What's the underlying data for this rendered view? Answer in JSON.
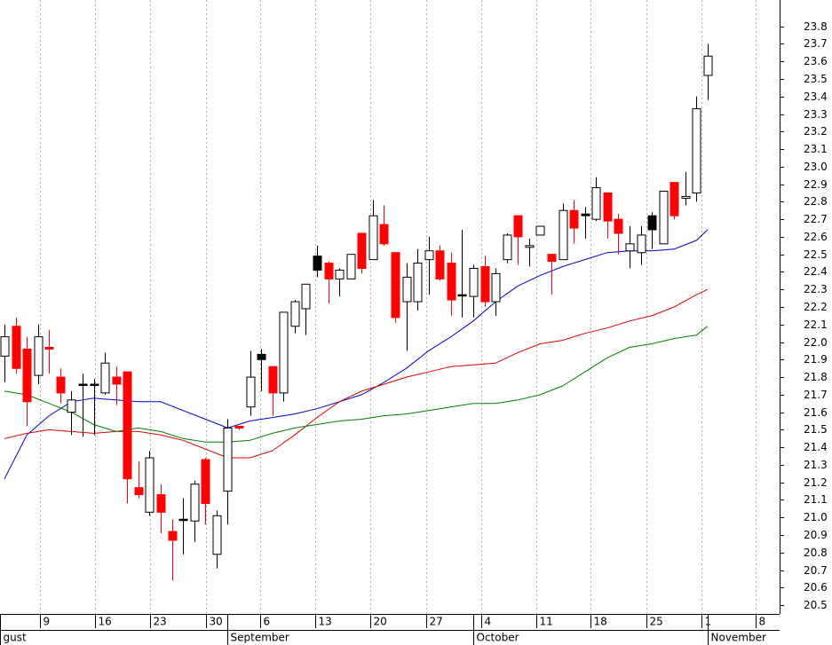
{
  "chart_data": {
    "type": "candlestick",
    "xlim": [
      -0.4,
      69.45
    ],
    "ylim": [
      20.45,
      23.95
    ],
    "yticks": [
      20.5,
      20.6,
      20.7,
      20.8,
      20.9,
      {
        "value": 21,
        "label": "21.0"
      },
      21.1,
      21.2,
      21.3,
      21.4,
      21.5,
      21.6,
      21.7,
      21.8,
      21.9,
      {
        "value": 22,
        "label": "22.0"
      },
      22.1,
      22.2,
      22.3,
      22.4,
      22.5,
      22.6,
      22.7,
      22.8,
      22.9,
      {
        "value": 23,
        "label": "23.0"
      },
      23.1,
      23.2,
      23.3,
      23.4,
      23.5,
      23.6,
      23.7,
      23.8
    ],
    "xticks": [
      {
        "value": 3.18,
        "label": "9"
      },
      {
        "value": 8.11,
        "label": "16"
      },
      {
        "value": 13.05,
        "label": "23"
      },
      {
        "value": 18.06,
        "label": "30"
      },
      {
        "value": 22.91,
        "label": "6"
      },
      {
        "value": 27.84,
        "label": "13"
      },
      {
        "value": 32.78,
        "label": "20"
      },
      {
        "value": 37.79,
        "label": "27"
      },
      {
        "value": 42.72,
        "label": "4"
      },
      {
        "value": 47.65,
        "label": "11"
      },
      {
        "value": 52.51,
        "label": "18"
      },
      {
        "value": 57.52,
        "label": "25"
      },
      {
        "value": 62.45,
        "label": "1"
      },
      {
        "value": 67.3,
        "label": "8"
      }
    ],
    "months": [
      {
        "value": -0.4,
        "label": "gust"
      },
      {
        "value": 19.97,
        "label": "September"
      },
      {
        "value": 42.0,
        "label": "October"
      },
      {
        "value": 63.0,
        "label": "November"
      }
    ],
    "grid": true,
    "candles": {
      "x": [
        0,
        1,
        2,
        3,
        4,
        5,
        6,
        7,
        8,
        9,
        10,
        11,
        12,
        13,
        14,
        15,
        16,
        17,
        18,
        19,
        20,
        21,
        22,
        23,
        24,
        25,
        26,
        27,
        28,
        29,
        30,
        31,
        32,
        33,
        34,
        35,
        36,
        37,
        38,
        39,
        40,
        41,
        42,
        43,
        44,
        45,
        46,
        47,
        48,
        49,
        50,
        51,
        52,
        53,
        54,
        55,
        56,
        57,
        58,
        59,
        60,
        61,
        62,
        63
      ],
      "open": [
        21.92,
        22.09,
        21.96,
        21.81,
        21.97,
        21.8,
        21.6,
        21.76,
        21.76,
        21.71,
        21.8,
        21.83,
        21.17,
        21.03,
        21.13,
        20.92,
        20.99,
        20.98,
        21.33,
        20.79,
        21.15,
        21.52,
        21.63,
        21.93,
        21.86,
        21.71,
        22.09,
        22.19,
        22.41,
        22.45,
        22.36,
        22.36,
        22.62,
        22.47,
        22.67,
        22.51,
        22.23,
        22.23,
        22.47,
        22.52,
        22.45,
        22.27,
        22.26,
        22.43,
        22.23,
        22.47,
        22.72,
        22.54,
        22.61,
        22.5,
        22.47,
        22.75,
        22.73,
        22.7,
        22.85,
        22.7,
        22.52,
        22.51,
        22.64,
        22.56,
        22.91,
        22.82,
        22.85,
        23.52
      ],
      "high": [
        22.1,
        22.14,
        22.03,
        22.1,
        22.07,
        21.85,
        21.72,
        21.82,
        21.79,
        21.94,
        21.86,
        21.83,
        21.32,
        21.38,
        21.19,
        20.99,
        21.11,
        21.21,
        21.34,
        21.04,
        21.56,
        21.52,
        21.95,
        21.96,
        21.86,
        22.17,
        22.24,
        22.33,
        22.55,
        22.46,
        22.42,
        22.5,
        22.62,
        22.81,
        22.78,
        22.51,
        22.45,
        22.53,
        22.6,
        22.55,
        22.51,
        22.64,
        22.44,
        22.49,
        22.42,
        22.62,
        22.72,
        22.59,
        22.66,
        22.5,
        22.79,
        22.81,
        22.77,
        22.94,
        22.85,
        22.73,
        22.66,
        22.66,
        22.74,
        22.86,
        22.91,
        22.97,
        23.4,
        23.7
      ],
      "low": [
        21.77,
        21.82,
        21.52,
        21.76,
        21.82,
        21.65,
        21.47,
        21.46,
        21.47,
        21.7,
        21.64,
        21.08,
        21.11,
        21.01,
        20.91,
        20.64,
        20.79,
        20.86,
        20.96,
        20.71,
        20.96,
        21.5,
        21.58,
        21.72,
        21.58,
        21.66,
        22.05,
        22.04,
        22.37,
        22.22,
        22.26,
        22.36,
        22.39,
        22.47,
        22.55,
        22.11,
        21.95,
        22.18,
        22.27,
        22.35,
        22.15,
        22.14,
        22.14,
        22.2,
        22.15,
        22.45,
        22.44,
        22.43,
        22.61,
        22.27,
        22.47,
        22.56,
        22.59,
        22.69,
        22.59,
        22.5,
        22.42,
        22.44,
        22.53,
        22.56,
        22.7,
        22.78,
        22.8,
        23.38
      ],
      "close": [
        22.03,
        21.85,
        21.66,
        22.03,
        21.96,
        21.71,
        21.67,
        21.76,
        21.76,
        21.88,
        21.76,
        21.22,
        21.13,
        21.34,
        21.03,
        20.87,
        20.99,
        21.19,
        21.08,
        21.01,
        21.51,
        21.51,
        21.8,
        21.9,
        21.71,
        22.17,
        22.23,
        22.33,
        22.49,
        22.36,
        22.41,
        22.5,
        22.42,
        22.72,
        22.56,
        22.14,
        22.37,
        22.45,
        22.52,
        22.36,
        22.24,
        22.27,
        22.42,
        22.23,
        22.39,
        22.61,
        22.6,
        22.55,
        22.66,
        22.46,
        22.75,
        22.65,
        22.72,
        22.88,
        22.69,
        22.62,
        22.56,
        22.61,
        22.72,
        22.86,
        22.72,
        22.83,
        23.33,
        23.63
      ],
      "colors": [
        "#ffffff",
        "#ff0000",
        "#ff0000",
        "#ffffff",
        "#ff0000",
        "#ff0000",
        "#ffffff",
        "#000000",
        "#000000",
        "#ffffff",
        "#ff0000",
        "#ff0000",
        "#ff0000",
        "#ffffff",
        "#ff0000",
        "#ff0000",
        "#000000",
        "#ffffff",
        "#ff0000",
        "#ffffff",
        "#ffffff",
        "#ff0000",
        "#ffffff",
        "#000000",
        "#ff0000",
        "#ffffff",
        "#ffffff",
        "#ffffff",
        "#000000",
        "#ff0000",
        "#ffffff",
        "#ffffff",
        "#ff0000",
        "#ffffff",
        "#ff0000",
        "#ff0000",
        "#ffffff",
        "#ffffff",
        "#ffffff",
        "#ff0000",
        "#ff0000",
        "#000000",
        "#ffffff",
        "#ff0000",
        "#ffffff",
        "#ffffff",
        "#ff0000",
        "#ffffff",
        "#ffffff",
        "#ff0000",
        "#ffffff",
        "#ff0000",
        "#000000",
        "#ffffff",
        "#ff0000",
        "#ff0000",
        "#ffffff",
        "#ffffff",
        "#000000",
        "#ffffff",
        "#ff0000",
        "#ffffff",
        "#ffffff",
        "#ffffff"
      ]
    },
    "lines": [
      {
        "color": "#0000cc",
        "x": [
          0,
          2,
          4,
          6,
          8,
          10,
          12,
          14,
          16,
          18,
          20,
          22,
          24,
          26,
          28,
          30,
          32,
          34,
          36,
          38,
          40,
          42,
          44,
          46,
          48,
          50,
          52,
          54,
          56,
          58,
          60,
          62,
          63
        ],
        "values": [
          21.22,
          21.47,
          21.58,
          21.66,
          21.68,
          21.67,
          21.66,
          21.66,
          21.61,
          21.56,
          21.51,
          21.55,
          21.57,
          21.59,
          21.62,
          21.66,
          21.7,
          21.77,
          21.85,
          21.95,
          22.03,
          22.12,
          22.23,
          22.32,
          22.38,
          22.43,
          22.47,
          22.51,
          22.52,
          22.52,
          22.53,
          22.58,
          22.64
        ]
      },
      {
        "color": "#dd0000",
        "x": [
          0,
          2,
          4,
          6,
          8,
          10,
          12,
          14,
          16,
          18,
          20,
          22,
          24,
          26,
          28,
          30,
          32,
          34,
          36,
          38,
          40,
          42,
          44,
          46,
          48,
          50,
          52,
          54,
          56,
          58,
          60,
          62,
          63
        ],
        "values": [
          21.45,
          21.48,
          21.5,
          21.49,
          21.48,
          21.49,
          21.49,
          21.47,
          21.44,
          21.39,
          21.34,
          21.34,
          21.38,
          21.47,
          21.57,
          21.66,
          21.72,
          21.76,
          21.8,
          21.83,
          21.86,
          21.87,
          21.88,
          21.94,
          21.99,
          22.01,
          22.05,
          22.08,
          22.12,
          22.15,
          22.2,
          22.27,
          22.3
        ]
      },
      {
        "color": "#008000",
        "x": [
          0,
          2,
          4,
          6,
          8,
          10,
          12,
          14,
          16,
          18,
          20,
          22,
          24,
          26,
          28,
          30,
          32,
          34,
          36,
          38,
          40,
          42,
          44,
          46,
          48,
          50,
          52,
          54,
          56,
          58,
          60,
          62,
          63
        ],
        "values": [
          21.72,
          21.7,
          21.65,
          21.6,
          21.53,
          21.49,
          21.51,
          21.49,
          21.45,
          21.43,
          21.43,
          21.44,
          21.48,
          21.51,
          21.53,
          21.55,
          21.56,
          21.58,
          21.59,
          21.61,
          21.63,
          21.65,
          21.65,
          21.67,
          21.7,
          21.75,
          21.83,
          21.91,
          21.97,
          21.99,
          22.02,
          22.04,
          22.09
        ]
      }
    ]
  }
}
